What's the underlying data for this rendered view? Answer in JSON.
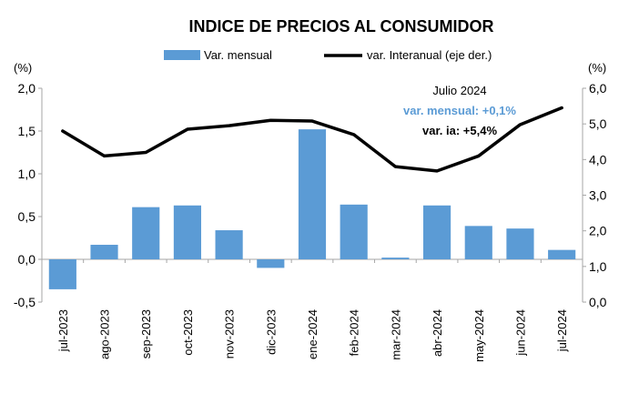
{
  "colors": {
    "bars": "#5B9BD5",
    "line": "#000000",
    "axis": "#A6A6A6",
    "annotation_mensual": "#5B9BD5",
    "annotation_ia": "#000000"
  },
  "chart_data": {
    "type": "bar",
    "title": "INDICE DE PRECIOS AL CONSUMIDOR",
    "categories": [
      "jul-2023",
      "ago-2023",
      "sep-2023",
      "oct-2023",
      "nov-2023",
      "dic-2023",
      "ene-2024",
      "feb-2024",
      "mar-2024",
      "abr-2024",
      "may-2024",
      "jun-2024",
      "jul-2024"
    ],
    "series": [
      {
        "name": "Var. mensual",
        "type": "bar",
        "axis": "left",
        "values": [
          -0.35,
          0.17,
          0.61,
          0.63,
          0.34,
          -0.1,
          1.52,
          0.64,
          0.02,
          0.63,
          0.39,
          0.36,
          0.11
        ]
      },
      {
        "name": "var. Interanual (eje der.)",
        "type": "line",
        "axis": "right",
        "values": [
          4.8,
          4.1,
          4.2,
          4.85,
          4.95,
          5.1,
          5.08,
          4.7,
          3.8,
          3.68,
          4.1,
          4.98,
          5.45
        ]
      }
    ],
    "y_left": {
      "label": "(%)",
      "range": [
        -0.5,
        2.0
      ],
      "ticks": [
        "-0,5",
        "0,0",
        "0,5",
        "1,0",
        "1,5",
        "2,0"
      ],
      "tick_values": [
        -0.5,
        0,
        0.5,
        1,
        1.5,
        2
      ]
    },
    "y_right": {
      "label": "(%)",
      "range": [
        0,
        6
      ],
      "ticks": [
        "0,0",
        "1,0",
        "2,0",
        "3,0",
        "4,0",
        "5,0",
        "6,0"
      ],
      "tick_values": [
        0,
        1,
        2,
        3,
        4,
        5,
        6
      ]
    },
    "legend_position": "top",
    "grid": false,
    "annotations": {
      "period": "Julio 2024",
      "mensual": "var. mensual: +0,1%",
      "ia": "var. ia: +5,4%"
    }
  }
}
